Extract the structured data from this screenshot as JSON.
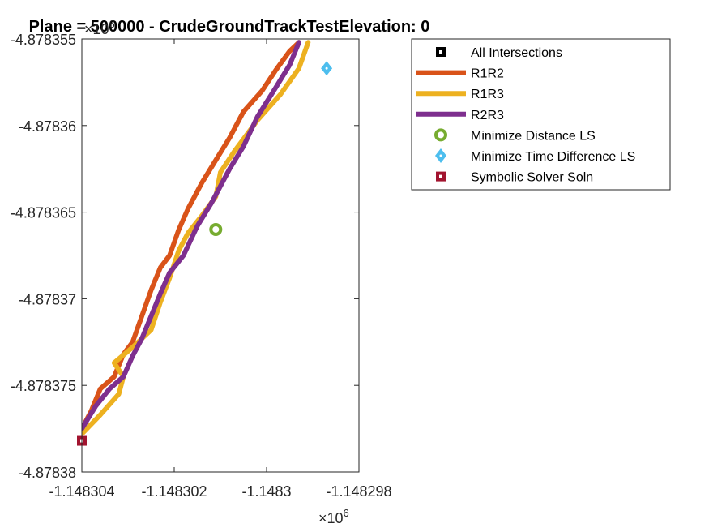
{
  "chart_data": {
    "type": "line",
    "title": "Plane = 500000 - CrudeGroundTrackTestElevation: 0",
    "xlabel": "",
    "ylabel": "",
    "x_multiplier": "×10",
    "x_multiplier_exp": "6",
    "y_multiplier": "×10",
    "y_multiplier_exp": "6",
    "xlim": [
      -1.148304,
      -1.148298
    ],
    "ylim": [
      -4.87838,
      -4.878355
    ],
    "x_ticks": [
      {
        "value": -1.148304,
        "label": "-1.148304"
      },
      {
        "value": -1.148302,
        "label": "-1.148302"
      },
      {
        "value": -1.1483,
        "label": "-1.1483"
      },
      {
        "value": -1.148298,
        "label": "-1.148298"
      }
    ],
    "y_ticks": [
      {
        "value": -4.878355,
        "label": "-4.878355"
      },
      {
        "value": -4.87836,
        "label": "-4.87836"
      },
      {
        "value": -4.878365,
        "label": "-4.878365"
      },
      {
        "value": -4.87837,
        "label": "-4.87837"
      },
      {
        "value": -4.878375,
        "label": "-4.878375"
      },
      {
        "value": -4.87838,
        "label": "-4.87838"
      }
    ],
    "grid": false,
    "legend_position": "top-right outside",
    "series": [
      {
        "name": "R1R2",
        "color": "#D95319",
        "kind": "line",
        "x": [
          -1.148304,
          -1.1483038,
          -1.1483036,
          -1.1483033,
          -1.1483031,
          -1.1483029,
          -1.1483027,
          -1.1483025,
          -1.1483023,
          -1.1483021,
          -1.1483019,
          -1.1483017,
          -1.1483014,
          -1.1483011,
          -1.1483008,
          -1.1483005,
          -1.1483001,
          -1.1482998,
          -1.1482995,
          -1.1482993
        ],
        "y": [
          -4.8783775,
          -4.8783765,
          -4.8783752,
          -4.8783745,
          -4.8783732,
          -4.8783725,
          -4.878371,
          -4.8783695,
          -4.8783682,
          -4.8783675,
          -4.878366,
          -4.8783648,
          -4.8783633,
          -4.878362,
          -4.8783607,
          -4.8783592,
          -4.878358,
          -4.8783568,
          -4.8783557,
          -4.8783552
        ]
      },
      {
        "name": "R1R3",
        "color": "#EDB120",
        "kind": "line",
        "x": [
          -1.148304,
          -1.1483036,
          -1.1483032,
          -1.1483031,
          -1.1483033,
          -1.1483029,
          -1.1483025,
          -1.1483023,
          -1.1483021,
          -1.1483019,
          -1.1483017,
          -1.1483014,
          -1.1483011,
          -1.148301,
          -1.1483007,
          -1.1483002,
          -1.1482997,
          -1.1482993,
          -1.1482991
        ],
        "y": [
          -4.8783778,
          -4.8783767,
          -4.8783755,
          -4.8783745,
          -4.8783737,
          -4.8783728,
          -4.8783718,
          -4.8783702,
          -4.8783688,
          -4.8783672,
          -4.8783662,
          -4.8783652,
          -4.8783641,
          -4.8783627,
          -4.8783615,
          -4.8783597,
          -4.8783582,
          -4.8783567,
          -4.8783552
        ]
      },
      {
        "name": "R2R3",
        "color": "#7E2F8E",
        "kind": "line",
        "x": [
          -1.148304,
          -1.1483037,
          -1.1483034,
          -1.1483031,
          -1.1483029,
          -1.1483027,
          -1.1483025,
          -1.1483023,
          -1.1483021,
          -1.1483018,
          -1.1483015,
          -1.1483012,
          -1.1483008,
          -1.1483005,
          -1.1483002,
          -1.1482998,
          -1.1482995,
          -1.1482993
        ],
        "y": [
          -4.8783775,
          -4.8783762,
          -4.8783752,
          -4.8783745,
          -4.8783733,
          -4.8783723,
          -4.878371,
          -4.8783697,
          -4.8783685,
          -4.8783675,
          -4.8783658,
          -4.8783645,
          -4.8783625,
          -4.8783612,
          -4.8783595,
          -4.8783578,
          -4.8783565,
          -4.8783552
        ]
      },
      {
        "name": "All Intersections",
        "color": "#000000",
        "kind": "marker",
        "marker": "square",
        "x": [],
        "y": []
      },
      {
        "name": "Minimize Distance LS",
        "color": "#77AC30",
        "kind": "marker",
        "marker": "circle",
        "x": [
          -1.1483011
        ],
        "y": [
          -4.878366
        ]
      },
      {
        "name": "Minimize Time Difference LS",
        "color": "#4DBEEE",
        "kind": "marker",
        "marker": "diamond",
        "x": [
          -1.1482987
        ],
        "y": [
          -4.8783567
        ]
      },
      {
        "name": "Symbolic Solver Soln",
        "color": "#A2142F",
        "kind": "marker",
        "marker": "square",
        "x": [
          -1.148304
        ],
        "y": [
          -4.8783782
        ]
      }
    ],
    "legend_order": [
      "All Intersections",
      "R1R2",
      "R1R3",
      "R2R3",
      "Minimize Distance LS",
      "Minimize Time Difference LS",
      "Symbolic Solver Soln"
    ]
  }
}
